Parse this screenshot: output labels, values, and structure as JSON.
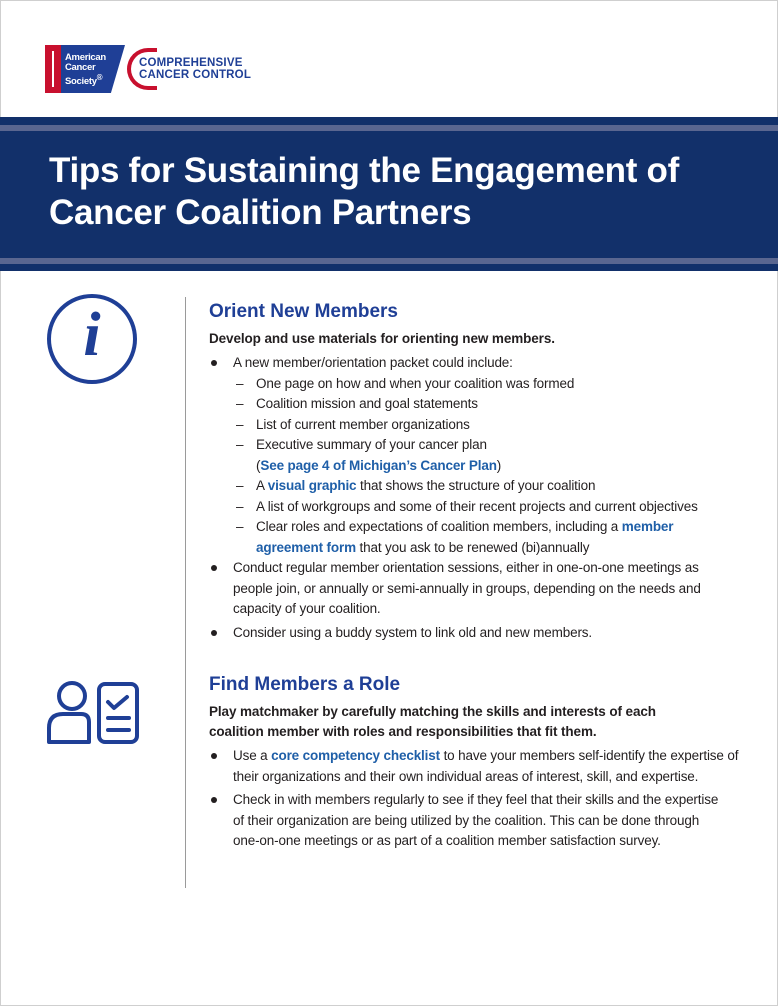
{
  "logo": {
    "acs": "American Cancer Society",
    "ccc_line1": "COMPREHENSIVE",
    "ccc_line2": "CANCER CONTROL"
  },
  "title_line1": "Tips for Sustaining the Engagement of",
  "title_line2": "Cancer Coalition Partners",
  "colors": {
    "navy": "#12306a",
    "heading": "#1f3f96",
    "link": "#1f5fa8",
    "red": "#c8102e"
  },
  "orient": {
    "icon": "info-icon",
    "heading": "Orient New Members",
    "lead": "Develop and use materials for orienting new members.",
    "b1": "A new member/orientation packet could include:",
    "d1": "One page on how and when your coalition was formed",
    "d2": "Coalition mission and goal statements",
    "d3": "List of current member organizations",
    "d4a": "Executive summary of your cancer plan",
    "d4b": "(",
    "d4link": "See page 4 of Michigan’s Cancer Plan",
    "d4c": ")",
    "d5a": "A ",
    "d5link": "visual graphic",
    "d5b": " that shows the structure of your coalition",
    "d6": "A list of workgroups and some of their recent projects and current objectives",
    "d7a": "Clear roles and expectations of coalition members, including a ",
    "d7link": "member agreement form",
    "d7b": " that you ask to be renewed (bi)annually",
    "b2": "Conduct regular member orientation sessions, either in one-on-one meetings as people join, or annually or semi-annually in groups, depending on the needs and capacity of your coalition.",
    "b3": "Consider using a buddy system to link old and new members."
  },
  "role": {
    "icon": "person-checklist-icon",
    "heading": "Find Members a Role",
    "lead": "Play matchmaker by carefully matching the skills and interests of each coalition member with roles and responsibilities that fit them.",
    "b1a": "Use a ",
    "b1link": "core competency checklist",
    "b1b": " to have your members self-identify the expertise of their organizations and their own individual areas of interest, skill, and expertise.",
    "b2": "Check in with members regularly to see if they feel that their skills and the expertise of their organization are being utilized by the coalition. This can be done through one-on-one meetings or as part of a coalition member satisfaction survey."
  }
}
